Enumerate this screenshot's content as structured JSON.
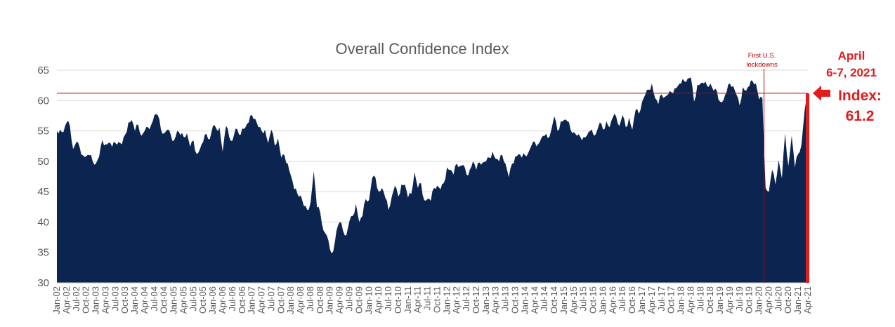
{
  "chart_data": {
    "type": "area",
    "title": "Overall Confidence Index",
    "xlabel": "",
    "ylabel": "",
    "ylim": [
      30,
      65
    ],
    "yticks": [
      30,
      35,
      40,
      45,
      50,
      55,
      60,
      65
    ],
    "grid": true,
    "start": "Jan-02",
    "period": "semi-monthly",
    "xtick_labels": [
      "Jan-02",
      "Apr-02",
      "Jul-02",
      "Oct-02",
      "Jan-03",
      "Apr-03",
      "Jul-03",
      "Oct-03",
      "Jan-04",
      "Apr-04",
      "Jul-04",
      "Oct-04",
      "Jan-05",
      "Apr-05",
      "Jul-05",
      "Oct-05",
      "Jan-06",
      "Apr-06",
      "Jul-06",
      "Oct-06",
      "Jan-07",
      "Apr-07",
      "Jul-07",
      "Oct-07",
      "Jan-08",
      "Apr-08",
      "Jul-08",
      "Oct-08",
      "Jan-09",
      "Apr-09",
      "Jul-09",
      "Oct-09",
      "Jan-10",
      "Apr-10",
      "Jul-10",
      "Oct-10",
      "Jan-11",
      "Apr-11",
      "Jul-11",
      "Oct-11",
      "Jan-12",
      "Apr-12",
      "Jul-12",
      "Oct-12",
      "Jan-13",
      "Apr-13",
      "Jul-13",
      "Oct-13",
      "Jan-14",
      "Apr-14",
      "Jul-14",
      "Oct-14",
      "Jan-15",
      "Apr-15",
      "Jul-15",
      "Oct-15",
      "Jan-16",
      "Apr-16",
      "Jul-16",
      "Oct-16",
      "Jan-17",
      "Apr-17",
      "Jul-17",
      "Oct-17",
      "Jan-18",
      "Apr-18",
      "Jul-18",
      "Oct-18",
      "Jan-19",
      "Apr-19",
      "Jul-19",
      "Oct-19",
      "Jan-20",
      "Apr-20",
      "Jul-20",
      "Oct-20",
      "Jan-21",
      "Apr-21"
    ],
    "series": [
      {
        "name": "Overall Confidence Index",
        "color": "#0b2550",
        "anchors": [
          [
            "Jan-02",
            55.0
          ],
          [
            "Feb-02",
            55.2
          ],
          [
            "Mar-02",
            54.8
          ],
          [
            "Apr-02",
            56.4
          ],
          [
            "May-02",
            55.8
          ],
          [
            "Jun-02",
            52.0
          ],
          [
            "Jul-02",
            53.2
          ],
          [
            "Aug-02",
            52.3
          ],
          [
            "Sep-02",
            51.0
          ],
          [
            "Oct-02",
            50.8
          ],
          [
            "Nov-02",
            51.0
          ],
          [
            "Dec-02",
            50.0
          ],
          [
            "Jan-03",
            49.6
          ],
          [
            "Feb-03",
            50.8
          ],
          [
            "Mar-03",
            53.5
          ],
          [
            "Apr-03",
            52.8
          ],
          [
            "May-03",
            53.1
          ],
          [
            "Jun-03",
            52.4
          ],
          [
            "Jul-03",
            53.0
          ],
          [
            "Aug-03",
            53.2
          ],
          [
            "Sep-03",
            52.8
          ],
          [
            "Oct-03",
            54.4
          ],
          [
            "Nov-03",
            56.4
          ],
          [
            "Dec-03",
            56.8
          ],
          [
            "Jan-04",
            55.0
          ],
          [
            "Feb-04",
            56.0
          ],
          [
            "Mar-04",
            54.2
          ],
          [
            "Apr-04",
            55.0
          ],
          [
            "May-04",
            55.6
          ],
          [
            "Jun-04",
            56.0
          ],
          [
            "Jul-04",
            57.6
          ],
          [
            "Aug-04",
            57.6
          ],
          [
            "Sep-04",
            55.2
          ],
          [
            "Oct-04",
            54.6
          ],
          [
            "Nov-04",
            55.2
          ],
          [
            "Dec-04",
            54.4
          ],
          [
            "Jan-05",
            53.4
          ],
          [
            "Feb-05",
            55.0
          ],
          [
            "Mar-05",
            54.3
          ],
          [
            "Apr-05",
            54.0
          ],
          [
            "May-05",
            54.6
          ],
          [
            "Jun-05",
            52.4
          ],
          [
            "Jul-05",
            53.4
          ],
          [
            "Aug-05",
            51.2
          ],
          [
            "Sep-05",
            52.0
          ],
          [
            "Oct-05",
            53.2
          ],
          [
            "Nov-05",
            54.5
          ],
          [
            "Dec-05",
            53.6
          ],
          [
            "Jan-06",
            55.8
          ],
          [
            "Feb-06",
            55.4
          ],
          [
            "Mar-06",
            55.6
          ],
          [
            "Apr-06",
            51.6
          ],
          [
            "May-06",
            55.8
          ],
          [
            "Jun-06",
            54.0
          ],
          [
            "Jul-06",
            53.4
          ],
          [
            "Aug-06",
            55.4
          ],
          [
            "Sep-06",
            54.4
          ],
          [
            "Oct-06",
            55.4
          ],
          [
            "Nov-06",
            55.6
          ],
          [
            "Dec-06",
            56.4
          ],
          [
            "Jan-07",
            57.6
          ],
          [
            "Feb-07",
            57.0
          ],
          [
            "Mar-07",
            55.6
          ],
          [
            "Apr-07",
            55.0
          ],
          [
            "May-07",
            55.2
          ],
          [
            "Jun-07",
            53.0
          ],
          [
            "Jul-07",
            55.2
          ],
          [
            "Aug-07",
            52.6
          ],
          [
            "Sep-07",
            53.8
          ],
          [
            "Oct-07",
            50.6
          ],
          [
            "Nov-07",
            51.0
          ],
          [
            "Dec-07",
            49.6
          ],
          [
            "Jan-08",
            47.6
          ],
          [
            "Feb-08",
            45.4
          ],
          [
            "Mar-08",
            44.6
          ],
          [
            "Apr-08",
            44.4
          ],
          [
            "May-08",
            42.6
          ],
          [
            "Jun-08",
            42.0
          ],
          [
            "Jul-08",
            43.2
          ],
          [
            "Aug-08",
            48.4
          ],
          [
            "Sep-08",
            42.4
          ],
          [
            "Oct-08",
            41.6
          ],
          [
            "Nov-08",
            38.6
          ],
          [
            "Dec-08",
            37.8
          ],
          [
            "Jan-09",
            35.5
          ],
          [
            "Feb-09",
            35.2
          ],
          [
            "Mar-09",
            38.6
          ],
          [
            "Apr-09",
            40.0
          ],
          [
            "May-09",
            38.6
          ],
          [
            "Jun-09",
            37.8
          ],
          [
            "Jul-09",
            40.2
          ],
          [
            "Aug-09",
            41.0
          ],
          [
            "Sep-09",
            43.0
          ],
          [
            "Oct-09",
            40.0
          ],
          [
            "Nov-09",
            41.0
          ],
          [
            "Dec-09",
            43.8
          ],
          [
            "Jan-10",
            43.6
          ],
          [
            "Feb-10",
            47.3
          ],
          [
            "Mar-10",
            47.3
          ],
          [
            "Apr-10",
            45.0
          ],
          [
            "May-10",
            45.6
          ],
          [
            "Jun-10",
            44.0
          ],
          [
            "Jul-10",
            42.0
          ],
          [
            "Aug-10",
            44.2
          ],
          [
            "Sep-10",
            46.0
          ],
          [
            "Oct-10",
            44.2
          ],
          [
            "Nov-10",
            46.2
          ],
          [
            "Dec-10",
            46.2
          ],
          [
            "Jan-11",
            44.0
          ],
          [
            "Feb-11",
            44.6
          ],
          [
            "Mar-11",
            48.2
          ],
          [
            "Apr-11",
            45.6
          ],
          [
            "May-11",
            46.4
          ],
          [
            "Jun-11",
            43.6
          ],
          [
            "Jul-11",
            43.8
          ],
          [
            "Aug-11",
            43.5
          ],
          [
            "Sep-11",
            45.6
          ],
          [
            "Oct-11",
            46.0
          ],
          [
            "Nov-11",
            45.4
          ],
          [
            "Dec-11",
            46.4
          ],
          [
            "Jan-12",
            49.0
          ],
          [
            "Feb-12",
            48.6
          ],
          [
            "Mar-12",
            47.8
          ],
          [
            "Apr-12",
            49.6
          ],
          [
            "May-12",
            49.2
          ],
          [
            "Jun-12",
            49.4
          ],
          [
            "Jul-12",
            47.8
          ],
          [
            "Aug-12",
            48.6
          ],
          [
            "Sep-12",
            50.0
          ],
          [
            "Oct-12",
            48.6
          ],
          [
            "Nov-12",
            49.8
          ],
          [
            "Dec-12",
            49.8
          ],
          [
            "Jan-13",
            50.0
          ],
          [
            "Feb-13",
            50.6
          ],
          [
            "Mar-13",
            51.6
          ],
          [
            "Apr-13",
            50.4
          ],
          [
            "May-13",
            50.0
          ],
          [
            "Jun-13",
            51.0
          ],
          [
            "Jul-13",
            49.6
          ],
          [
            "Aug-13",
            47.4
          ],
          [
            "Sep-13",
            49.6
          ],
          [
            "Oct-13",
            50.8
          ],
          [
            "Nov-13",
            51.2
          ],
          [
            "Dec-13",
            50.6
          ],
          [
            "Jan-14",
            51.0
          ],
          [
            "Feb-14",
            51.4
          ],
          [
            "Mar-14",
            52.6
          ],
          [
            "Apr-14",
            53.2
          ],
          [
            "May-14",
            52.8
          ],
          [
            "Jun-14",
            53.8
          ],
          [
            "Jul-14",
            54.2
          ],
          [
            "Aug-14",
            53.8
          ],
          [
            "Sep-14",
            55.0
          ],
          [
            "Oct-14",
            57.4
          ],
          [
            "Nov-14",
            55.0
          ],
          [
            "Dec-14",
            56.6
          ],
          [
            "Jan-15",
            56.8
          ],
          [
            "Feb-15",
            56.6
          ],
          [
            "Mar-15",
            55.2
          ],
          [
            "Apr-15",
            54.8
          ],
          [
            "May-15",
            54.2
          ],
          [
            "Jun-15",
            54.0
          ],
          [
            "Jul-15",
            54.0
          ],
          [
            "Aug-15",
            54.2
          ],
          [
            "Sep-15",
            55.0
          ],
          [
            "Oct-15",
            54.4
          ],
          [
            "Nov-15",
            54.8
          ],
          [
            "Dec-15",
            56.4
          ],
          [
            "Jan-16",
            55.2
          ],
          [
            "Feb-16",
            56.6
          ],
          [
            "Mar-16",
            55.6
          ],
          [
            "Apr-16",
            57.2
          ],
          [
            "May-16",
            57.4
          ],
          [
            "Jun-16",
            55.8
          ],
          [
            "Jul-16",
            57.6
          ],
          [
            "Aug-16",
            55.6
          ],
          [
            "Sep-16",
            57.2
          ],
          [
            "Oct-16",
            55.2
          ],
          [
            "Nov-16",
            58.4
          ],
          [
            "Dec-16",
            57.8
          ],
          [
            "Jan-17",
            59.8
          ],
          [
            "Feb-17",
            61.0
          ],
          [
            "Mar-17",
            61.8
          ],
          [
            "Apr-17",
            62.8
          ],
          [
            "May-17",
            60.4
          ],
          [
            "Jun-17",
            59.4
          ],
          [
            "Jul-17",
            61.0
          ],
          [
            "Aug-17",
            60.6
          ],
          [
            "Sep-17",
            61.0
          ],
          [
            "Oct-17",
            61.4
          ],
          [
            "Nov-17",
            62.0
          ],
          [
            "Dec-17",
            62.4
          ],
          [
            "Jan-18",
            62.8
          ],
          [
            "Feb-18",
            63.2
          ],
          [
            "Mar-18",
            63.6
          ],
          [
            "Apr-18",
            63.8
          ],
          [
            "May-18",
            59.8
          ],
          [
            "Jun-18",
            62.6
          ],
          [
            "Jul-18",
            62.8
          ],
          [
            "Aug-18",
            62.8
          ],
          [
            "Sep-18",
            62.4
          ],
          [
            "Oct-18",
            62.8
          ],
          [
            "Nov-18",
            61.6
          ],
          [
            "Dec-18",
            61.6
          ],
          [
            "Jan-19",
            59.8
          ],
          [
            "Feb-19",
            60.0
          ],
          [
            "Mar-19",
            61.4
          ],
          [
            "Apr-19",
            62.8
          ],
          [
            "May-19",
            62.4
          ],
          [
            "Jun-19",
            61.0
          ],
          [
            "Jul-19",
            59.2
          ],
          [
            "Aug-19",
            62.2
          ],
          [
            "Sep-19",
            61.6
          ],
          [
            "Oct-19",
            62.4
          ],
          [
            "Nov-19",
            63.2
          ],
          [
            "Dec-19",
            62.8
          ],
          [
            "Jan-20",
            60.2
          ],
          [
            "Feb-20",
            60.4
          ],
          [
            "Mar-20",
            45.6
          ],
          [
            "Apr-20",
            45.0
          ],
          [
            "May-20",
            48.6
          ],
          [
            "Jun-20",
            46.2
          ],
          [
            "Jul-20",
            50.2
          ],
          [
            "Aug-20",
            47.2
          ],
          [
            "Sep-20",
            54.6
          ],
          [
            "Oct-20",
            49.2
          ],
          [
            "Nov-20",
            54.2
          ],
          [
            "Dec-20",
            49.0
          ],
          [
            "Jan-21",
            51.2
          ],
          [
            "Feb-21",
            52.6
          ],
          [
            "Mar-21",
            58.4
          ],
          [
            "Apr-21",
            61.2
          ]
        ]
      }
    ],
    "reference_line": {
      "value": 61.2,
      "color": "#c00000"
    },
    "annotations": {
      "lockdown_label_line1": "First U.S.",
      "lockdown_label_line2": "lockdowns",
      "lockdown_at": "Mar-20",
      "callout_line1": "April",
      "callout_line2": "6-7, 2021",
      "index_line1": "Index:",
      "index_line2": "61.2",
      "accent_color": "#e31b1b"
    }
  }
}
